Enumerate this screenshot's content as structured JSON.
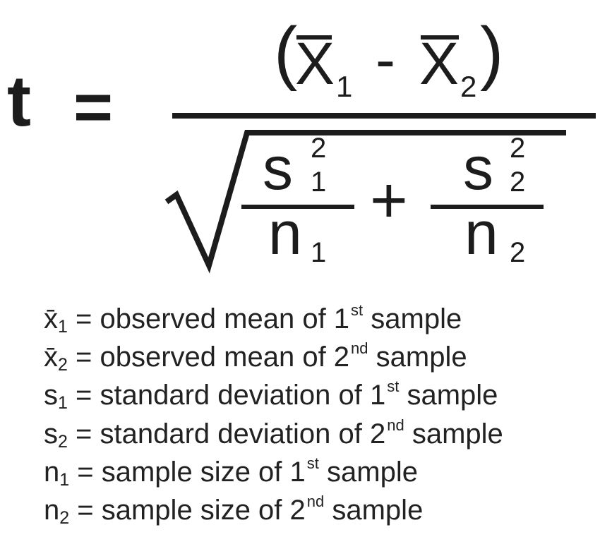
{
  "formula": {
    "lhs": "t",
    "equals": "=",
    "numerator": {
      "open_paren": "(",
      "var1": "X",
      "var1_sub": "1",
      "minus": "-",
      "var2": "X",
      "var2_sub": "2",
      "close_paren": ")"
    },
    "denominator": {
      "term1": {
        "s": "s",
        "sup": "2",
        "sub": "1",
        "n": "n",
        "n_sub": "1"
      },
      "plus": "+",
      "term2": {
        "s": "s",
        "sup": "2",
        "sub": "2",
        "n": "n",
        "n_sub": "2"
      }
    }
  },
  "legend": [
    {
      "symbol": "x̄",
      "sub": "1",
      "text": " = observed mean of 1",
      "ordinal": "st",
      "tail": " sample"
    },
    {
      "symbol": "x̄",
      "sub": "2",
      "text": " = observed mean of 2",
      "ordinal": "nd",
      "tail": " sample"
    },
    {
      "symbol": "s",
      "sub": "1",
      "text": " = standard deviation of 1",
      "ordinal": "st",
      "tail": " sample"
    },
    {
      "symbol": "s",
      "sub": "2",
      "text": " = standard deviation of 2",
      "ordinal": "nd",
      "tail": " sample"
    },
    {
      "symbol": "n",
      "sub": "1",
      "text": " = sample size of 1",
      "ordinal": "st",
      "tail": " sample"
    },
    {
      "symbol": "n",
      "sub": "2",
      "text": " = sample size of 2",
      "ordinal": "nd",
      "tail": " sample"
    }
  ]
}
